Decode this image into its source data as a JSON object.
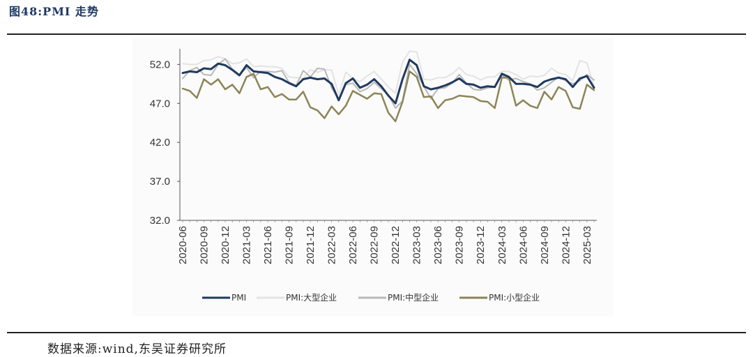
{
  "figure_title": "图48:PMI 走势",
  "source": "数据来源:wind,东吴证券研究所",
  "colors": {
    "pmi": "#1f3a5f",
    "large": "#e3e3e3",
    "medium": "#b8b8b8",
    "small": "#8c8457"
  },
  "chart_data": {
    "type": "line",
    "title": "",
    "xlabel": "",
    "ylabel": "",
    "ylim": [
      32.0,
      54.0
    ],
    "yticks": [
      "52.0",
      "47.0",
      "42.0",
      "37.0",
      "32.0"
    ],
    "x_tick_labels": [
      "2020-06",
      "2020-09",
      "2020-12",
      "2021-03",
      "2021-06",
      "2021-09",
      "2021-12",
      "2022-03",
      "2022-06",
      "2022-09",
      "2022-12",
      "2023-03",
      "2023-06",
      "2023-09",
      "2023-12",
      "2024-03",
      "2024-06",
      "2024-09",
      "2024-12",
      "2025-03"
    ],
    "legend_position": "bottom",
    "x": [
      "2020-06",
      "2020-07",
      "2020-08",
      "2020-09",
      "2020-10",
      "2020-11",
      "2020-12",
      "2021-01",
      "2021-02",
      "2021-03",
      "2021-04",
      "2021-05",
      "2021-06",
      "2021-07",
      "2021-08",
      "2021-09",
      "2021-10",
      "2021-11",
      "2021-12",
      "2022-01",
      "2022-02",
      "2022-03",
      "2022-04",
      "2022-05",
      "2022-06",
      "2022-07",
      "2022-08",
      "2022-09",
      "2022-10",
      "2022-11",
      "2022-12",
      "2023-01",
      "2023-02",
      "2023-03",
      "2023-04",
      "2023-05",
      "2023-06",
      "2023-07",
      "2023-08",
      "2023-09",
      "2023-10",
      "2023-11",
      "2023-12",
      "2024-01",
      "2024-02",
      "2024-03",
      "2024-04",
      "2024-05",
      "2024-06",
      "2024-07",
      "2024-08",
      "2024-09",
      "2024-10",
      "2024-11",
      "2024-12",
      "2025-01",
      "2025-02",
      "2025-03",
      "2025-04"
    ],
    "series": [
      {
        "name": "PMI",
        "color_key": "pmi",
        "width": 3,
        "values": [
          50.9,
          51.1,
          51.0,
          51.5,
          51.4,
          52.1,
          51.9,
          51.3,
          50.6,
          51.9,
          51.1,
          51.0,
          50.9,
          50.4,
          50.1,
          49.6,
          49.2,
          50.1,
          50.3,
          50.1,
          50.2,
          49.5,
          47.4,
          49.6,
          50.2,
          49.0,
          49.4,
          50.1,
          49.2,
          48.0,
          47.0,
          50.1,
          52.6,
          51.9,
          49.2,
          48.8,
          49.0,
          49.3,
          49.7,
          50.2,
          49.5,
          49.4,
          49.0,
          49.2,
          49.1,
          50.8,
          50.4,
          49.5,
          49.5,
          49.4,
          49.1,
          49.8,
          50.1,
          50.3,
          50.1,
          49.1,
          50.2,
          50.5,
          49.0
        ]
      },
      {
        "name": "PMI:大型企业",
        "color_key": "large",
        "width": 2,
        "values": [
          52.1,
          52.0,
          52.0,
          52.5,
          52.6,
          53.0,
          52.7,
          52.1,
          52.2,
          52.7,
          51.7,
          51.8,
          51.7,
          51.7,
          51.5,
          50.4,
          50.3,
          50.2,
          51.3,
          51.0,
          51.3,
          51.3,
          48.1,
          51.0,
          50.2,
          49.8,
          50.5,
          51.1,
          50.1,
          49.1,
          48.3,
          52.3,
          53.7,
          53.6,
          50.1,
          50.0,
          50.3,
          50.3,
          50.8,
          51.6,
          50.7,
          50.5,
          50.0,
          50.4,
          50.4,
          51.1,
          51.1,
          50.7,
          50.1,
          50.5,
          50.4,
          50.6,
          51.5,
          50.9,
          50.7,
          49.9,
          52.5,
          52.2,
          49.2
        ]
      },
      {
        "name": "PMI:中型企业",
        "color_key": "medium",
        "width": 2,
        "values": [
          50.2,
          51.2,
          51.6,
          50.7,
          50.6,
          52.0,
          52.7,
          51.4,
          50.6,
          51.6,
          50.3,
          51.1,
          51.1,
          51.0,
          51.2,
          49.7,
          49.3,
          51.2,
          50.4,
          51.5,
          51.4,
          49.0,
          47.5,
          49.4,
          49.6,
          48.5,
          48.9,
          49.7,
          48.9,
          48.1,
          46.4,
          47.3,
          52.0,
          50.8,
          49.2,
          47.6,
          48.9,
          49.0,
          49.6,
          50.7,
          49.6,
          48.8,
          48.7,
          49.0,
          49.1,
          50.6,
          50.0,
          50.2,
          49.8,
          49.5,
          48.7,
          49.0,
          49.7,
          50.4,
          49.9,
          49.5,
          49.9,
          50.7,
          50.0
        ]
      },
      {
        "name": "PMI:小型企业",
        "color_key": "small",
        "width": 2.5,
        "values": [
          48.9,
          48.6,
          47.7,
          50.1,
          49.4,
          50.1,
          48.8,
          49.4,
          48.3,
          50.4,
          50.8,
          48.8,
          49.1,
          47.8,
          48.2,
          47.5,
          47.5,
          48.5,
          46.5,
          46.1,
          45.1,
          46.6,
          45.6,
          46.7,
          48.6,
          48.1,
          47.6,
          48.3,
          48.2,
          45.8,
          44.7,
          47.2,
          51.1,
          50.4,
          47.8,
          47.9,
          46.4,
          47.4,
          47.6,
          48.0,
          47.9,
          47.8,
          47.3,
          47.2,
          46.4,
          50.3,
          50.3,
          46.7,
          47.4,
          46.7,
          46.4,
          48.5,
          47.5,
          49.1,
          48.6,
          46.5,
          46.3,
          49.4,
          48.7
        ]
      }
    ]
  }
}
